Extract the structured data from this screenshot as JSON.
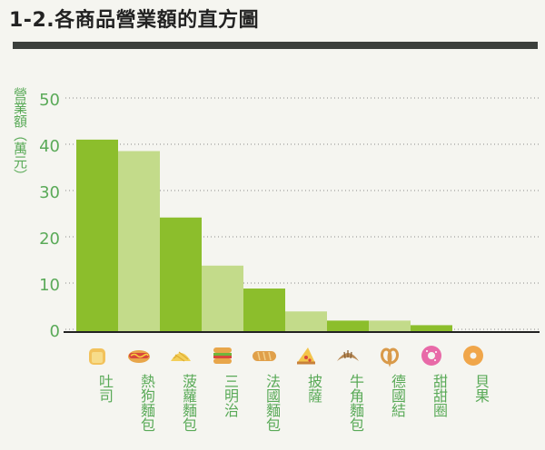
{
  "page": {
    "title": "1-2.各商品營業額的直方圖"
  },
  "chart_data": {
    "type": "bar",
    "title": "1-2.各商品營業額的直方圖",
    "ylabel": "營業額（萬元）",
    "xlabel": "",
    "y_ticks": [
      "50",
      "40",
      "30",
      "20",
      "10",
      "0"
    ],
    "grid": "horizontal dotted",
    "categories": [
      "吐司",
      "熱狗麵包",
      "菠蘿麵包",
      "三明治",
      "法國麵包",
      "披薩",
      "牛角麵包",
      "德國結",
      "甜甜圈",
      "貝果"
    ],
    "values": [
      42,
      39.5,
      25,
      14.5,
      9.5,
      4.5,
      2.5,
      2.5,
      1.5,
      0.2
    ],
    "icons": [
      "toast-icon",
      "hotdog-icon",
      "melon-bun-icon",
      "sandwich-icon",
      "baguette-icon",
      "pizza-slice-icon",
      "croissant-icon",
      "pretzel-icon",
      "donut-icon",
      "bagel-icon"
    ],
    "colors": {
      "dark_bar": "#8cbe2c",
      "light_bar": "#c3db8a",
      "axis_text": "#5aaa58",
      "title_rule": "#3c403c"
    }
  }
}
